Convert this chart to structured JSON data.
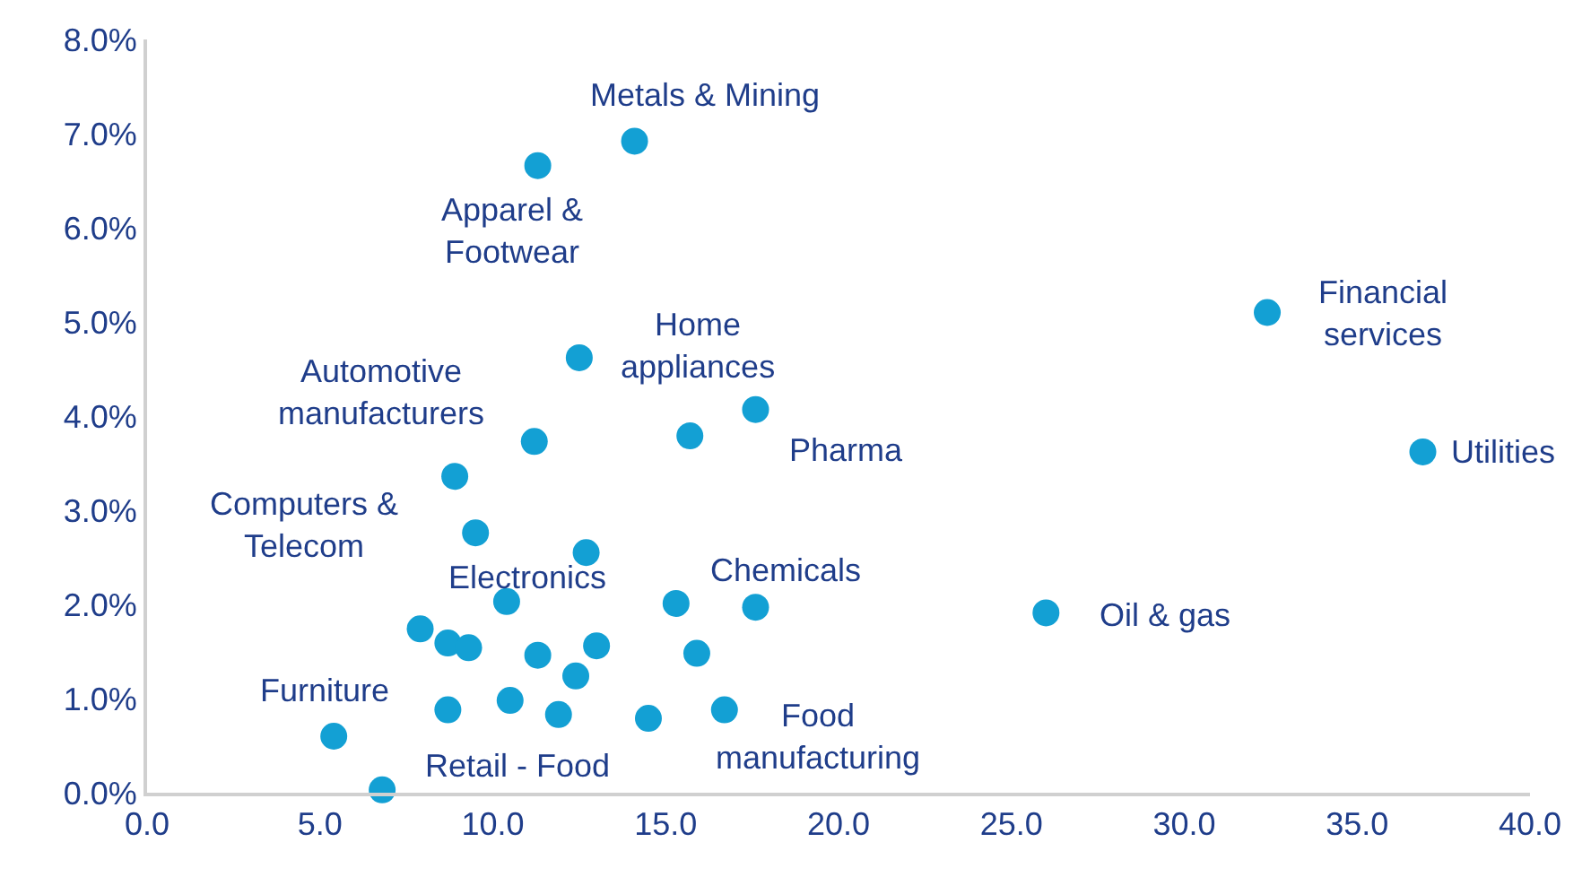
{
  "chart_data": {
    "type": "scatter",
    "x": [
      14.1,
      11.3,
      12.5,
      17.6,
      11.2,
      15.7,
      8.9,
      9.5,
      12.7,
      10.4,
      15.3,
      17.6,
      7.9,
      8.7,
      9.3,
      11.3,
      13.0,
      15.9,
      12.4,
      8.7,
      10.5,
      11.9,
      14.5,
      16.7,
      5.4,
      6.8,
      26.0,
      32.4,
      36.9
    ],
    "series": [
      {
        "color": "#13a0d4",
        "values": [
          6.92,
          6.66,
          4.62,
          4.07,
          3.73,
          3.79,
          3.36,
          2.76,
          2.55,
          2.03,
          2.01,
          1.97,
          1.74,
          1.59,
          1.54,
          1.46,
          1.56,
          1.48,
          1.24,
          0.88,
          0.98,
          0.83,
          0.79,
          0.88,
          0.6,
          0.03,
          1.91,
          5.1,
          3.62
        ]
      }
    ],
    "xlim": [
      0,
      40
    ],
    "ylim": [
      0,
      8
    ],
    "xticks": [
      {
        "value": 0,
        "label": "0.0"
      },
      {
        "value": 5,
        "label": "5.0"
      },
      {
        "value": 10,
        "label": "10.0"
      },
      {
        "value": 15,
        "label": "15.0"
      },
      {
        "value": 20,
        "label": "20.0"
      },
      {
        "value": 25,
        "label": "25.0"
      },
      {
        "value": 30,
        "label": "30.0"
      },
      {
        "value": 35,
        "label": "35.0"
      },
      {
        "value": 40,
        "label": "40.0"
      }
    ],
    "yticks": [
      {
        "value": 0,
        "label": "0.0%"
      },
      {
        "value": 1,
        "label": "1.0%"
      },
      {
        "value": 2,
        "label": "2.0%"
      },
      {
        "value": 3,
        "label": "3.0%"
      },
      {
        "value": 4,
        "label": "4.0%"
      },
      {
        "value": 5,
        "label": "5.0%"
      },
      {
        "value": 6,
        "label": "6.0%"
      },
      {
        "value": 7,
        "label": "7.0%"
      },
      {
        "value": 8,
        "label": "8.0%"
      }
    ],
    "grid": false,
    "marker": "circle",
    "annotations": [
      {
        "text": "Metals & Mining",
        "x": 14.1,
        "y": 6.92
      },
      {
        "text": "Apparel &\nFootwear",
        "x": 11.3,
        "y": 6.66
      },
      {
        "text": "Home\nappliances",
        "x": 12.5,
        "y": 4.62
      },
      {
        "text": "Pharma",
        "x": 17.6,
        "y": 4.07
      },
      {
        "text": "Automotive\nmanufacturers",
        "x": 11.2,
        "y": 3.73
      },
      {
        "text": "Computers &\nTelecom",
        "x": 9.5,
        "y": 2.76
      },
      {
        "text": "Electronics",
        "x": 10.4,
        "y": 2.03
      },
      {
        "text": "Chemicals",
        "x": 17.6,
        "y": 1.97
      },
      {
        "text": "Furniture",
        "x": 5.4,
        "y": 0.6
      },
      {
        "text": "Retail - Food",
        "x": 6.8,
        "y": 0.03
      },
      {
        "text": "Food\nmanufacturing",
        "x": 16.7,
        "y": 0.88
      },
      {
        "text": "Oil & gas",
        "x": 26.0,
        "y": 1.91
      },
      {
        "text": "Financial\nservices",
        "x": 32.4,
        "y": 5.1
      },
      {
        "text": "Utilities",
        "x": 36.9,
        "y": 3.62
      }
    ]
  }
}
